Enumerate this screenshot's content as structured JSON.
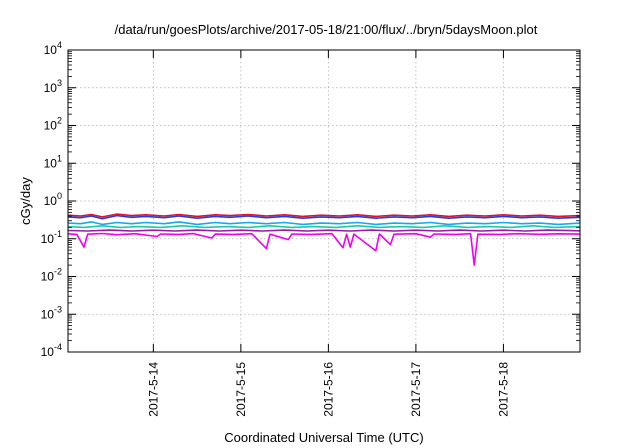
{
  "chart_data": {
    "type": "line",
    "title": "/data/run/goesPlots/archive/2017-05-18/21:00/flux/../bryn/5daysMoon.plot",
    "xlabel": "Coordinated Universal Time (UTC)",
    "ylabel": "cGy/day",
    "y_scale": "log",
    "ylim": [
      0.0001,
      10000
    ],
    "xlim": [
      "2017-05-13T00:36",
      "2017-05-18T21:00"
    ],
    "grid": true,
    "x_ticks": [
      {
        "date": "2017-05-14T00:00",
        "label": "2017-5-14"
      },
      {
        "date": "2017-05-15T00:00",
        "label": "2017-5-15"
      },
      {
        "date": "2017-05-16T00:00",
        "label": "2017-5-16"
      },
      {
        "date": "2017-05-17T00:00",
        "label": "2017-5-17"
      },
      {
        "date": "2017-05-18T00:00",
        "label": "2017-5-18"
      }
    ],
    "y_ticks": [
      {
        "value": 0.0001,
        "base": "10",
        "exp": "-4"
      },
      {
        "value": 0.001,
        "base": "10",
        "exp": "-3"
      },
      {
        "value": 0.01,
        "base": "10",
        "exp": "-2"
      },
      {
        "value": 0.1,
        "base": "10",
        "exp": "-1"
      },
      {
        "value": 1,
        "base": "10",
        "exp": "0"
      },
      {
        "value": 10,
        "base": "10",
        "exp": "1"
      },
      {
        "value": 100,
        "base": "10",
        "exp": "2"
      },
      {
        "value": 1000,
        "base": "10",
        "exp": "3"
      },
      {
        "value": 10000,
        "base": "10",
        "exp": "4"
      }
    ],
    "series": [
      {
        "color": "#e0112b",
        "points": [
          [
            "2017-05-13T00:36",
            0.42
          ],
          [
            "2017-05-13T04:00",
            0.4
          ],
          [
            "2017-05-13T07:00",
            0.44
          ],
          [
            "2017-05-13T10:00",
            0.38
          ],
          [
            "2017-05-13T14:00",
            0.45
          ],
          [
            "2017-05-13T18:00",
            0.41
          ],
          [
            "2017-05-13T22:00",
            0.43
          ],
          [
            "2017-05-14T03:00",
            0.4
          ],
          [
            "2017-05-14T07:00",
            0.44
          ],
          [
            "2017-05-14T12:00",
            0.39
          ],
          [
            "2017-05-14T17:00",
            0.43
          ],
          [
            "2017-05-14T21:00",
            0.41
          ],
          [
            "2017-05-15T02:00",
            0.44
          ],
          [
            "2017-05-15T07:00",
            0.4
          ],
          [
            "2017-05-15T12:00",
            0.43
          ],
          [
            "2017-05-15T17:00",
            0.39
          ],
          [
            "2017-05-15T22:00",
            0.42
          ],
          [
            "2017-05-16T03:00",
            0.4
          ],
          [
            "2017-05-16T08:00",
            0.43
          ],
          [
            "2017-05-16T13:00",
            0.39
          ],
          [
            "2017-05-16T18:00",
            0.42
          ],
          [
            "2017-05-16T23:00",
            0.4
          ],
          [
            "2017-05-17T04:00",
            0.43
          ],
          [
            "2017-05-17T09:00",
            0.39
          ],
          [
            "2017-05-17T14:00",
            0.42
          ],
          [
            "2017-05-17T19:00",
            0.4
          ],
          [
            "2017-05-18T00:00",
            0.43
          ],
          [
            "2017-05-18T05:00",
            0.4
          ],
          [
            "2017-05-18T10:00",
            0.42
          ],
          [
            "2017-05-18T15:00",
            0.39
          ],
          [
            "2017-05-18T21:00",
            0.41
          ]
        ]
      },
      {
        "color": "#1f3fe0",
        "points": [
          [
            "2017-05-13T00:36",
            0.38
          ],
          [
            "2017-05-13T04:00",
            0.36
          ],
          [
            "2017-05-13T07:00",
            0.4
          ],
          [
            "2017-05-13T10:00",
            0.34
          ],
          [
            "2017-05-13T14:00",
            0.41
          ],
          [
            "2017-05-13T18:00",
            0.37
          ],
          [
            "2017-05-13T22:00",
            0.39
          ],
          [
            "2017-05-14T03:00",
            0.36
          ],
          [
            "2017-05-14T07:00",
            0.4
          ],
          [
            "2017-05-14T12:00",
            0.35
          ],
          [
            "2017-05-14T17:00",
            0.39
          ],
          [
            "2017-05-14T21:00",
            0.37
          ],
          [
            "2017-05-15T02:00",
            0.4
          ],
          [
            "2017-05-15T07:00",
            0.36
          ],
          [
            "2017-05-15T12:00",
            0.39
          ],
          [
            "2017-05-15T17:00",
            0.35
          ],
          [
            "2017-05-15T22:00",
            0.38
          ],
          [
            "2017-05-16T03:00",
            0.36
          ],
          [
            "2017-05-16T08:00",
            0.39
          ],
          [
            "2017-05-16T13:00",
            0.35
          ],
          [
            "2017-05-16T18:00",
            0.38
          ],
          [
            "2017-05-16T23:00",
            0.36
          ],
          [
            "2017-05-17T04:00",
            0.39
          ],
          [
            "2017-05-17T09:00",
            0.35
          ],
          [
            "2017-05-17T14:00",
            0.38
          ],
          [
            "2017-05-17T19:00",
            0.36
          ],
          [
            "2017-05-18T00:00",
            0.39
          ],
          [
            "2017-05-18T05:00",
            0.36
          ],
          [
            "2017-05-18T10:00",
            0.38
          ],
          [
            "2017-05-18T15:00",
            0.35
          ],
          [
            "2017-05-18T21:00",
            0.37
          ]
        ]
      },
      {
        "color": "#19a7ea",
        "points": [
          [
            "2017-05-13T00:36",
            0.26
          ],
          [
            "2017-05-13T04:00",
            0.25
          ],
          [
            "2017-05-13T07:00",
            0.28
          ],
          [
            "2017-05-13T10:00",
            0.24
          ],
          [
            "2017-05-13T14:00",
            0.27
          ],
          [
            "2017-05-13T18:00",
            0.25
          ],
          [
            "2017-05-13T22:00",
            0.27
          ],
          [
            "2017-05-14T03:00",
            0.25
          ],
          [
            "2017-05-14T07:00",
            0.28
          ],
          [
            "2017-05-14T12:00",
            0.24
          ],
          [
            "2017-05-14T17:00",
            0.27
          ],
          [
            "2017-05-14T21:00",
            0.25
          ],
          [
            "2017-05-15T02:00",
            0.27
          ],
          [
            "2017-05-15T07:00",
            0.25
          ],
          [
            "2017-05-15T12:00",
            0.27
          ],
          [
            "2017-05-15T17:00",
            0.24
          ],
          [
            "2017-05-15T22:00",
            0.26
          ],
          [
            "2017-05-16T03:00",
            0.25
          ],
          [
            "2017-05-16T08:00",
            0.27
          ],
          [
            "2017-05-16T13:00",
            0.24
          ],
          [
            "2017-05-16T18:00",
            0.26
          ],
          [
            "2017-05-16T23:00",
            0.25
          ],
          [
            "2017-05-17T04:00",
            0.27
          ],
          [
            "2017-05-17T09:00",
            0.24
          ],
          [
            "2017-05-17T14:00",
            0.26
          ],
          [
            "2017-05-17T19:00",
            0.25
          ],
          [
            "2017-05-18T00:00",
            0.27
          ],
          [
            "2017-05-18T05:00",
            0.25
          ],
          [
            "2017-05-18T10:00",
            0.26
          ],
          [
            "2017-05-18T15:00",
            0.24
          ],
          [
            "2017-05-18T21:00",
            0.26
          ]
        ]
      },
      {
        "color": "#20c9a6",
        "points": [
          [
            "2017-05-13T00:36",
            0.21
          ],
          [
            "2017-05-13T05:00",
            0.2
          ],
          [
            "2017-05-13T10:00",
            0.22
          ],
          [
            "2017-05-13T15:00",
            0.2
          ],
          [
            "2017-05-13T20:00",
            0.21
          ],
          [
            "2017-05-14T02:00",
            0.2
          ],
          [
            "2017-05-14T08:00",
            0.22
          ],
          [
            "2017-05-14T14:00",
            0.2
          ],
          [
            "2017-05-14T20:00",
            0.21
          ],
          [
            "2017-05-15T02:00",
            0.2
          ],
          [
            "2017-05-15T08:00",
            0.22
          ],
          [
            "2017-05-15T14:00",
            0.2
          ],
          [
            "2017-05-15T20:00",
            0.21
          ],
          [
            "2017-05-16T02:00",
            0.2
          ],
          [
            "2017-05-16T08:00",
            0.22
          ],
          [
            "2017-05-16T14:00",
            0.2
          ],
          [
            "2017-05-16T20:00",
            0.21
          ],
          [
            "2017-05-17T02:00",
            0.2
          ],
          [
            "2017-05-17T08:00",
            0.22
          ],
          [
            "2017-05-17T14:00",
            0.2
          ],
          [
            "2017-05-17T20:00",
            0.21
          ],
          [
            "2017-05-18T02:00",
            0.2
          ],
          [
            "2017-05-18T08:00",
            0.22
          ],
          [
            "2017-05-18T14:00",
            0.2
          ],
          [
            "2017-05-18T21:00",
            0.21
          ]
        ]
      },
      {
        "color": "#9a1aa6",
        "points": [
          [
            "2017-05-13T00:36",
            0.165
          ],
          [
            "2017-05-13T06:00",
            0.16
          ],
          [
            "2017-05-13T12:00",
            0.17
          ],
          [
            "2017-05-13T18:00",
            0.16
          ],
          [
            "2017-05-14T00:00",
            0.168
          ],
          [
            "2017-05-14T06:00",
            0.16
          ],
          [
            "2017-05-14T12:00",
            0.17
          ],
          [
            "2017-05-14T18:00",
            0.16
          ],
          [
            "2017-05-15T00:00",
            0.168
          ],
          [
            "2017-05-15T06:00",
            0.16
          ],
          [
            "2017-05-15T12:00",
            0.17
          ],
          [
            "2017-05-15T18:00",
            0.16
          ],
          [
            "2017-05-16T00:00",
            0.168
          ],
          [
            "2017-05-16T06:00",
            0.16
          ],
          [
            "2017-05-16T12:00",
            0.17
          ],
          [
            "2017-05-16T18:00",
            0.16
          ],
          [
            "2017-05-17T00:00",
            0.168
          ],
          [
            "2017-05-17T06:00",
            0.16
          ],
          [
            "2017-05-17T12:00",
            0.17
          ],
          [
            "2017-05-17T18:00",
            0.16
          ],
          [
            "2017-05-18T00:00",
            0.168
          ],
          [
            "2017-05-18T06:00",
            0.16
          ],
          [
            "2017-05-18T12:00",
            0.17
          ],
          [
            "2017-05-18T21:00",
            0.162
          ]
        ]
      },
      {
        "color": "#f000f0",
        "points": [
          [
            "2017-05-13T00:36",
            0.135
          ],
          [
            "2017-05-13T03:00",
            0.13
          ],
          [
            "2017-05-13T05:00",
            0.06
          ],
          [
            "2017-05-13T06:00",
            0.132
          ],
          [
            "2017-05-13T10:00",
            0.138
          ],
          [
            "2017-05-13T14:00",
            0.128
          ],
          [
            "2017-05-13T19:00",
            0.136
          ],
          [
            "2017-05-14T01:00",
            0.115
          ],
          [
            "2017-05-14T02:00",
            0.134
          ],
          [
            "2017-05-14T07:00",
            0.13
          ],
          [
            "2017-05-14T11:00",
            0.137
          ],
          [
            "2017-05-14T16:00",
            0.105
          ],
          [
            "2017-05-14T17:00",
            0.133
          ],
          [
            "2017-05-14T22:00",
            0.13
          ],
          [
            "2017-05-15T03:00",
            0.136
          ],
          [
            "2017-05-15T07:00",
            0.055
          ],
          [
            "2017-05-15T08:00",
            0.132
          ],
          [
            "2017-05-15T13:00",
            0.095
          ],
          [
            "2017-05-15T14:00",
            0.134
          ],
          [
            "2017-05-15T19:00",
            0.13
          ],
          [
            "2017-05-16T01:00",
            0.136
          ],
          [
            "2017-05-16T04:00",
            0.058
          ],
          [
            "2017-05-16T05:00",
            0.132
          ],
          [
            "2017-05-16T06:00",
            0.06
          ],
          [
            "2017-05-16T07:00",
            0.133
          ],
          [
            "2017-05-16T13:00",
            0.048
          ],
          [
            "2017-05-16T14:00",
            0.134
          ],
          [
            "2017-05-16T17:00",
            0.07
          ],
          [
            "2017-05-16T18:00",
            0.132
          ],
          [
            "2017-05-17T00:00",
            0.136
          ],
          [
            "2017-05-17T04:00",
            0.11
          ],
          [
            "2017-05-17T05:00",
            0.134
          ],
          [
            "2017-05-17T11:00",
            0.13
          ],
          [
            "2017-05-17T15:00",
            0.136
          ],
          [
            "2017-05-17T16:00",
            0.02
          ],
          [
            "2017-05-17T17:00",
            0.132
          ],
          [
            "2017-05-17T23:00",
            0.13
          ],
          [
            "2017-05-18T04:00",
            0.136
          ],
          [
            "2017-05-18T10:00",
            0.131
          ],
          [
            "2017-05-18T15:00",
            0.135
          ],
          [
            "2017-05-18T21:00",
            0.133
          ]
        ]
      }
    ]
  }
}
